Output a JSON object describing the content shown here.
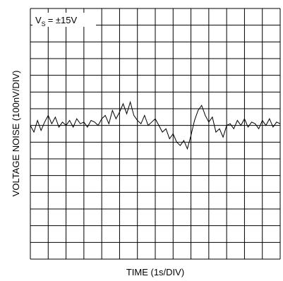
{
  "chart_data": {
    "type": "line",
    "xlabel": "TIME (1s/DIV)",
    "ylabel": "VOLTAGE NOISE (100nV/DIV)",
    "annotation": {
      "v": "V",
      "sub": "S",
      "rest": "= ±15V"
    },
    "xlim": [
      0,
      14
    ],
    "ylim": [
      0,
      15
    ],
    "xticks": [
      0,
      1,
      2,
      3,
      4,
      5,
      6,
      7,
      8,
      9,
      10,
      11,
      12,
      13,
      14
    ],
    "yticks": [
      0,
      1,
      2,
      3,
      4,
      5,
      6,
      7,
      8,
      9,
      10,
      11,
      12,
      13,
      14,
      15
    ],
    "grid": true,
    "x": [
      0,
      0.2,
      0.4,
      0.6,
      0.8,
      1,
      1.2,
      1.4,
      1.6,
      1.8,
      2,
      2.2,
      2.4,
      2.6,
      2.8,
      3,
      3.2,
      3.4,
      3.6,
      3.8,
      4,
      4.2,
      4.4,
      4.6,
      4.8,
      5,
      5.2,
      5.4,
      5.6,
      5.8,
      6,
      6.2,
      6.4,
      6.6,
      6.8,
      7,
      7.2,
      7.4,
      7.6,
      7.8,
      8,
      8.2,
      8.4,
      8.6,
      8.8,
      9,
      9.2,
      9.4,
      9.6,
      9.8,
      10,
      10.2,
      10.4,
      10.6,
      10.8,
      11,
      11.2,
      11.4,
      11.6,
      11.8,
      12,
      12.2,
      12.4,
      12.6,
      12.8,
      13,
      13.2,
      13.4,
      13.6,
      13.8,
      14
    ],
    "series": [
      {
        "color": "#000000",
        "values": [
          8.0,
          7.6,
          8.3,
          7.7,
          8.2,
          8.6,
          8.1,
          8.5,
          7.9,
          8.2,
          8.0,
          8.3,
          7.9,
          8.4,
          8.1,
          8.2,
          7.9,
          8.3,
          8.2,
          8.0,
          8.4,
          8.6,
          8.1,
          8.9,
          8.4,
          8.8,
          9.3,
          8.7,
          9.4,
          8.6,
          8.3,
          8.1,
          8.6,
          8.0,
          8.2,
          8.4,
          8.0,
          7.6,
          7.8,
          7.2,
          7.5,
          7.0,
          6.8,
          7.1,
          6.6,
          7.4,
          8.3,
          8.9,
          9.2,
          8.6,
          8.2,
          8.5,
          7.6,
          7.8,
          7.3,
          8.0,
          8.1,
          7.8,
          8.3,
          8.0,
          8.4,
          7.9,
          8.2,
          8.1,
          7.8,
          8.3,
          8.0,
          8.4,
          7.9,
          8.2,
          8.1
        ]
      }
    ]
  }
}
